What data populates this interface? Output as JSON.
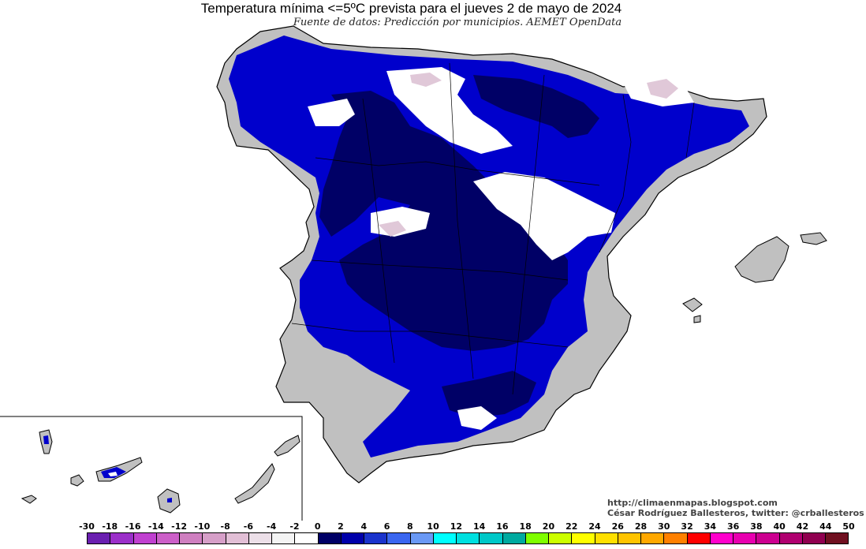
{
  "title": "Temperatura mínima <=5ºC prevista para el jueves 2 de mayo de 2024",
  "subtitle": "Fuente de datos: Predicción por municipios. AEMET OpenData",
  "credits": {
    "blog": "http://climaenmapas.blogspot.com",
    "author": "César Rodríguez Ballesteros, twitter: @crballesteros"
  },
  "legend": {
    "labels": [
      "-30",
      "-18",
      "-16",
      "-14",
      "-12",
      "-10",
      "-8",
      "-6",
      "-4",
      "-2",
      "0",
      "2",
      "4",
      "6",
      "8",
      "10",
      "12",
      "14",
      "16",
      "18",
      "20",
      "22",
      "24",
      "26",
      "28",
      "30",
      "32",
      "34",
      "36",
      "38",
      "40",
      "42",
      "44",
      "50"
    ],
    "colors": [
      "#6a1fb0",
      "#9b2fc9",
      "#c040d0",
      "#cc5fc8",
      "#cf7fc0",
      "#d69fc8",
      "#e2bfd6",
      "#ecdfe8",
      "#f4f4f4",
      "#ffffff",
      "#000066",
      "#0000aa",
      "#1a33cc",
      "#3a66f0",
      "#6a99f5",
      "#00ffff",
      "#00e0e0",
      "#00c8c8",
      "#00aaa0",
      "#7fff00",
      "#ccff00",
      "#ffff00",
      "#ffe000",
      "#ffc400",
      "#ffa800",
      "#ff8000",
      "#ff0000",
      "#ff00cc",
      "#e800b0",
      "#cc0090",
      "#b00070",
      "#900050",
      "#701020"
    ]
  },
  "palette": {
    "land_gray": "#c0c0c0",
    "deep_navy": "#000066",
    "blue": "#0000cc",
    "snow_white": "#ffffff",
    "pink": "#e0c8d8"
  }
}
